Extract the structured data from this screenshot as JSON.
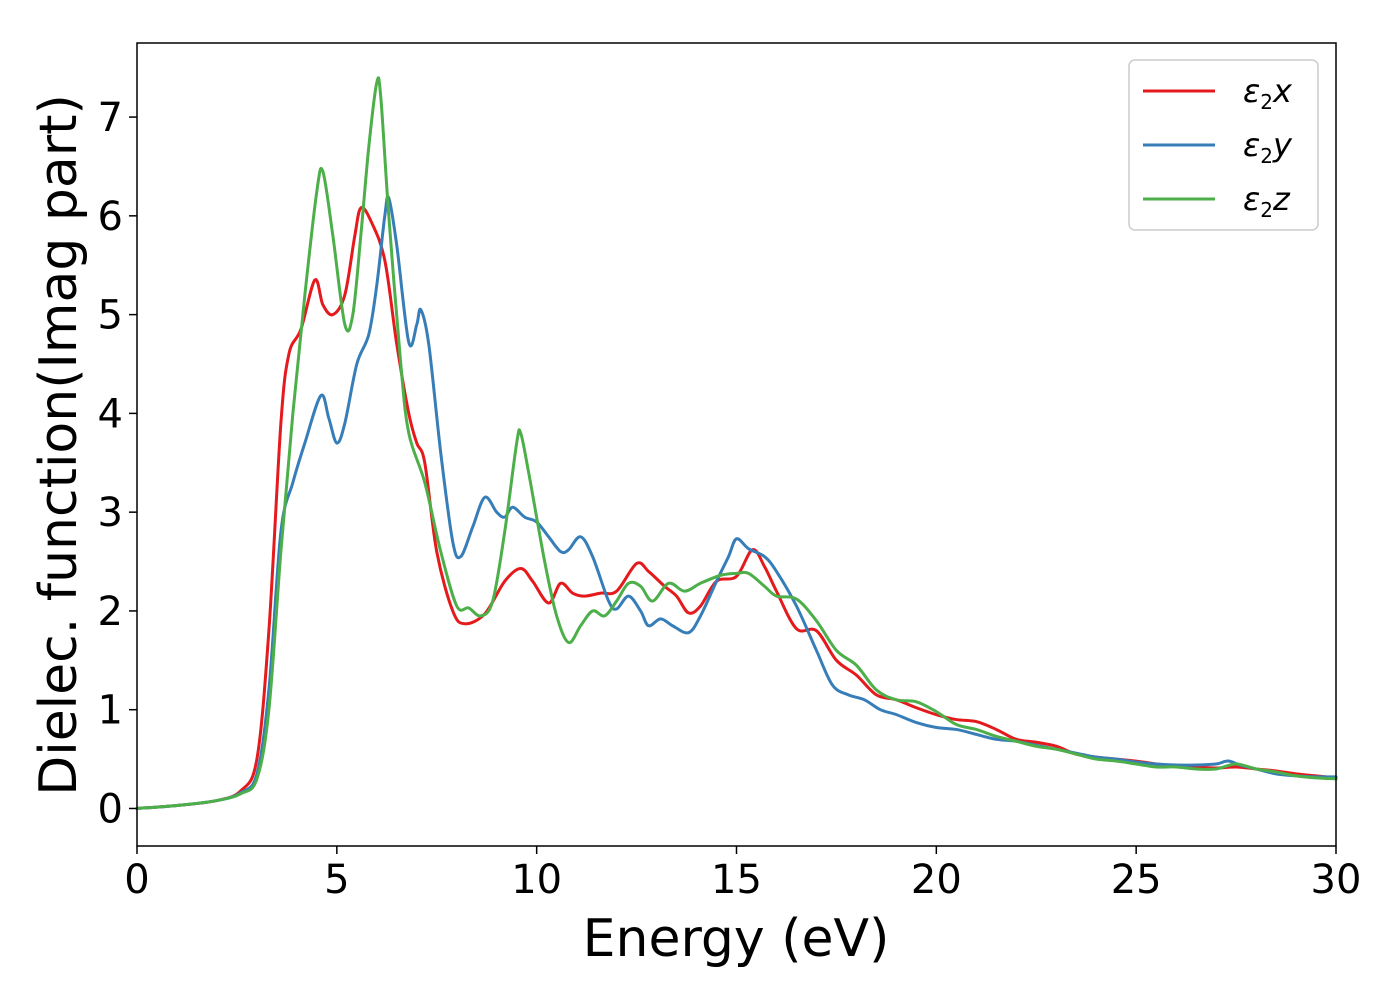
{
  "chart_data": {
    "type": "line",
    "title": "",
    "xlabel": "Energy (eV)",
    "ylabel": "Dielec. function(Imag part)",
    "xlim": [
      0,
      30
    ],
    "ylim": [
      -0.38,
      7.75
    ],
    "xticks": [
      0,
      5,
      10,
      15,
      20,
      25,
      30
    ],
    "yticks": [
      0,
      1,
      2,
      3,
      4,
      5,
      6,
      7
    ],
    "grid": false,
    "legend_position": "top-right",
    "series": [
      {
        "name": "ε2x",
        "legend": {
          "base": "ε",
          "sub": "2",
          "tail": "x"
        },
        "color": "#e41a1c",
        "points": [
          [
            0,
            0
          ],
          [
            1,
            0.03
          ],
          [
            2,
            0.08
          ],
          [
            2.6,
            0.18
          ],
          [
            3.0,
            0.5
          ],
          [
            3.3,
            1.8
          ],
          [
            3.6,
            3.9
          ],
          [
            3.8,
            4.6
          ],
          [
            4.1,
            4.85
          ],
          [
            4.45,
            5.35
          ],
          [
            4.65,
            5.1
          ],
          [
            4.9,
            5.0
          ],
          [
            5.2,
            5.2
          ],
          [
            5.45,
            5.8
          ],
          [
            5.6,
            6.08
          ],
          [
            5.85,
            5.95
          ],
          [
            6.2,
            5.55
          ],
          [
            6.5,
            4.7
          ],
          [
            6.8,
            4.0
          ],
          [
            7.0,
            3.7
          ],
          [
            7.2,
            3.5
          ],
          [
            7.5,
            2.6
          ],
          [
            7.9,
            2.0
          ],
          [
            8.2,
            1.87
          ],
          [
            8.7,
            1.97
          ],
          [
            9.2,
            2.3
          ],
          [
            9.6,
            2.43
          ],
          [
            9.9,
            2.3
          ],
          [
            10.3,
            2.08
          ],
          [
            10.6,
            2.28
          ],
          [
            10.9,
            2.18
          ],
          [
            11.2,
            2.15
          ],
          [
            11.6,
            2.18
          ],
          [
            12.0,
            2.2
          ],
          [
            12.5,
            2.48
          ],
          [
            12.8,
            2.4
          ],
          [
            13.2,
            2.25
          ],
          [
            13.5,
            2.15
          ],
          [
            13.8,
            1.98
          ],
          [
            14.1,
            2.05
          ],
          [
            14.5,
            2.3
          ],
          [
            15.0,
            2.35
          ],
          [
            15.4,
            2.62
          ],
          [
            15.7,
            2.45
          ],
          [
            16.0,
            2.2
          ],
          [
            16.5,
            1.82
          ],
          [
            17.0,
            1.8
          ],
          [
            17.5,
            1.5
          ],
          [
            18.0,
            1.35
          ],
          [
            18.5,
            1.15
          ],
          [
            19.0,
            1.1
          ],
          [
            19.5,
            1.02
          ],
          [
            20.0,
            0.95
          ],
          [
            20.5,
            0.9
          ],
          [
            21.0,
            0.88
          ],
          [
            21.5,
            0.8
          ],
          [
            22.0,
            0.7
          ],
          [
            22.5,
            0.67
          ],
          [
            23.0,
            0.63
          ],
          [
            23.5,
            0.55
          ],
          [
            24.0,
            0.52
          ],
          [
            24.5,
            0.5
          ],
          [
            25.0,
            0.48
          ],
          [
            25.5,
            0.45
          ],
          [
            26.0,
            0.43
          ],
          [
            26.5,
            0.42
          ],
          [
            27.0,
            0.41
          ],
          [
            27.5,
            0.42
          ],
          [
            28.0,
            0.4
          ],
          [
            28.5,
            0.38
          ],
          [
            29.0,
            0.35
          ],
          [
            29.5,
            0.33
          ],
          [
            30.0,
            0.31
          ]
        ]
      },
      {
        "name": "ε2y",
        "legend": {
          "base": "ε",
          "sub": "2",
          "tail": "y"
        },
        "color": "#377eb8",
        "points": [
          [
            0,
            0
          ],
          [
            1,
            0.03
          ],
          [
            2,
            0.08
          ],
          [
            2.6,
            0.16
          ],
          [
            3.0,
            0.35
          ],
          [
            3.3,
            1.2
          ],
          [
            3.6,
            2.8
          ],
          [
            3.9,
            3.3
          ],
          [
            4.2,
            3.7
          ],
          [
            4.6,
            4.18
          ],
          [
            4.8,
            3.95
          ],
          [
            5.0,
            3.7
          ],
          [
            5.2,
            3.9
          ],
          [
            5.5,
            4.5
          ],
          [
            5.8,
            4.8
          ],
          [
            6.0,
            5.3
          ],
          [
            6.2,
            6.0
          ],
          [
            6.3,
            6.18
          ],
          [
            6.5,
            5.7
          ],
          [
            6.8,
            4.72
          ],
          [
            7.0,
            4.9
          ],
          [
            7.1,
            5.05
          ],
          [
            7.3,
            4.7
          ],
          [
            7.6,
            3.6
          ],
          [
            7.9,
            2.7
          ],
          [
            8.1,
            2.55
          ],
          [
            8.4,
            2.85
          ],
          [
            8.7,
            3.15
          ],
          [
            9.0,
            3.0
          ],
          [
            9.2,
            2.95
          ],
          [
            9.4,
            3.05
          ],
          [
            9.7,
            2.95
          ],
          [
            10.0,
            2.9
          ],
          [
            10.3,
            2.75
          ],
          [
            10.6,
            2.6
          ],
          [
            10.8,
            2.62
          ],
          [
            11.1,
            2.75
          ],
          [
            11.4,
            2.55
          ],
          [
            11.8,
            2.1
          ],
          [
            12.0,
            2.02
          ],
          [
            12.3,
            2.15
          ],
          [
            12.6,
            2.0
          ],
          [
            12.8,
            1.85
          ],
          [
            13.1,
            1.92
          ],
          [
            13.4,
            1.85
          ],
          [
            13.8,
            1.78
          ],
          [
            14.1,
            1.95
          ],
          [
            14.5,
            2.3
          ],
          [
            14.8,
            2.55
          ],
          [
            15.0,
            2.73
          ],
          [
            15.3,
            2.63
          ],
          [
            15.7,
            2.55
          ],
          [
            16.0,
            2.4
          ],
          [
            16.5,
            2.05
          ],
          [
            17.0,
            1.6
          ],
          [
            17.4,
            1.25
          ],
          [
            17.8,
            1.15
          ],
          [
            18.2,
            1.1
          ],
          [
            18.6,
            1.0
          ],
          [
            19.0,
            0.95
          ],
          [
            19.5,
            0.87
          ],
          [
            20.0,
            0.82
          ],
          [
            20.5,
            0.8
          ],
          [
            21.0,
            0.75
          ],
          [
            21.5,
            0.7
          ],
          [
            22.0,
            0.68
          ],
          [
            22.5,
            0.64
          ],
          [
            23.0,
            0.6
          ],
          [
            23.5,
            0.56
          ],
          [
            24.0,
            0.52
          ],
          [
            24.5,
            0.5
          ],
          [
            25.0,
            0.47
          ],
          [
            25.5,
            0.45
          ],
          [
            26.0,
            0.44
          ],
          [
            26.5,
            0.44
          ],
          [
            27.0,
            0.45
          ],
          [
            27.3,
            0.48
          ],
          [
            27.6,
            0.44
          ],
          [
            28.0,
            0.4
          ],
          [
            28.5,
            0.35
          ],
          [
            29.0,
            0.33
          ],
          [
            29.5,
            0.32
          ],
          [
            30.0,
            0.32
          ]
        ]
      },
      {
        "name": "ε2z",
        "legend": {
          "base": "ε",
          "sub": "2",
          "tail": "z"
        },
        "color": "#4daf4a",
        "points": [
          [
            0,
            0
          ],
          [
            1,
            0.03
          ],
          [
            2,
            0.08
          ],
          [
            2.6,
            0.15
          ],
          [
            3.0,
            0.3
          ],
          [
            3.3,
            1.0
          ],
          [
            3.6,
            2.6
          ],
          [
            3.9,
            4.0
          ],
          [
            4.2,
            5.2
          ],
          [
            4.5,
            6.25
          ],
          [
            4.65,
            6.45
          ],
          [
            4.9,
            5.8
          ],
          [
            5.2,
            4.9
          ],
          [
            5.4,
            5.0
          ],
          [
            5.6,
            5.8
          ],
          [
            5.8,
            6.7
          ],
          [
            6.0,
            7.35
          ],
          [
            6.1,
            7.2
          ],
          [
            6.3,
            6.0
          ],
          [
            6.6,
            4.5
          ],
          [
            6.8,
            3.8
          ],
          [
            7.2,
            3.3
          ],
          [
            7.6,
            2.6
          ],
          [
            8.0,
            2.05
          ],
          [
            8.3,
            2.03
          ],
          [
            8.6,
            1.95
          ],
          [
            8.9,
            2.1
          ],
          [
            9.2,
            2.8
          ],
          [
            9.5,
            3.7
          ],
          [
            9.6,
            3.8
          ],
          [
            9.8,
            3.4
          ],
          [
            10.2,
            2.5
          ],
          [
            10.5,
            1.95
          ],
          [
            10.8,
            1.68
          ],
          [
            11.1,
            1.85
          ],
          [
            11.4,
            2.0
          ],
          [
            11.7,
            1.95
          ],
          [
            12.0,
            2.1
          ],
          [
            12.3,
            2.28
          ],
          [
            12.6,
            2.25
          ],
          [
            12.9,
            2.1
          ],
          [
            13.3,
            2.28
          ],
          [
            13.7,
            2.2
          ],
          [
            14.1,
            2.28
          ],
          [
            14.6,
            2.36
          ],
          [
            15.0,
            2.38
          ],
          [
            15.3,
            2.38
          ],
          [
            15.7,
            2.25
          ],
          [
            16.0,
            2.15
          ],
          [
            16.5,
            2.12
          ],
          [
            17.0,
            1.9
          ],
          [
            17.5,
            1.6
          ],
          [
            18.0,
            1.45
          ],
          [
            18.5,
            1.2
          ],
          [
            19.0,
            1.1
          ],
          [
            19.5,
            1.08
          ],
          [
            20.0,
            0.98
          ],
          [
            20.5,
            0.85
          ],
          [
            21.0,
            0.8
          ],
          [
            21.5,
            0.73
          ],
          [
            22.0,
            0.68
          ],
          [
            22.5,
            0.63
          ],
          [
            23.0,
            0.6
          ],
          [
            23.5,
            0.55
          ],
          [
            24.0,
            0.5
          ],
          [
            24.5,
            0.48
          ],
          [
            25.0,
            0.45
          ],
          [
            25.5,
            0.42
          ],
          [
            26.0,
            0.42
          ],
          [
            26.5,
            0.4
          ],
          [
            27.0,
            0.4
          ],
          [
            27.5,
            0.45
          ],
          [
            28.0,
            0.4
          ],
          [
            28.5,
            0.37
          ],
          [
            29.0,
            0.33
          ],
          [
            29.5,
            0.31
          ],
          [
            30.0,
            0.3
          ]
        ]
      }
    ]
  }
}
